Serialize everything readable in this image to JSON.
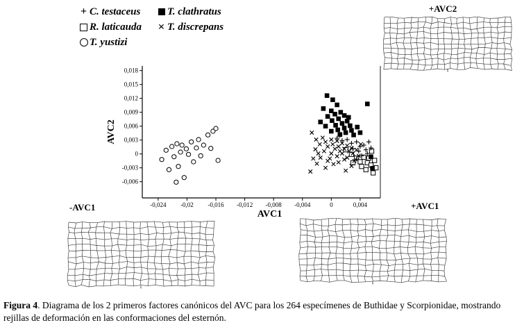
{
  "legend": {
    "items": [
      {
        "id": "c-testaceus",
        "marker": "plus",
        "label": "C. testaceus"
      },
      {
        "id": "r-laticauda",
        "marker": "square-open",
        "label": "R. laticauda"
      },
      {
        "id": "t-yustizi",
        "marker": "circle-open",
        "label": "T. yustizi"
      },
      {
        "id": "t-clathratus",
        "marker": "square-filled",
        "label": "T. clathratus"
      },
      {
        "id": "t-discrepans",
        "marker": "x",
        "label": "T. discrepans"
      }
    ]
  },
  "grid_panels": {
    "top_right": {
      "label": "+AVC2"
    },
    "bottom_left": {
      "label": "-AVC1"
    },
    "bottom_right": {
      "label": "+AVC1"
    }
  },
  "chart_data": {
    "type": "scatter",
    "title": "",
    "xlabel": "AVC1",
    "ylabel": "AVC2",
    "xlim": [
      -0.0262,
      0.0068
    ],
    "ylim": [
      -0.0095,
      0.019
    ],
    "grid": false,
    "legend_position": "top-left-outside",
    "xticks": [
      {
        "v": -0.024,
        "label": "-0,024"
      },
      {
        "v": -0.02,
        "label": "-0,02"
      },
      {
        "v": -0.016,
        "label": "-0,016"
      },
      {
        "v": -0.012,
        "label": "-0,012"
      },
      {
        "v": -0.008,
        "label": "-0,008"
      },
      {
        "v": -0.004,
        "label": "-0,004"
      },
      {
        "v": 0,
        "label": "0"
      },
      {
        "v": 0.004,
        "label": "0,004"
      }
    ],
    "yticks": [
      {
        "v": 0.018,
        "label": "0,018"
      },
      {
        "v": 0.015,
        "label": "0,015"
      },
      {
        "v": 0.012,
        "label": "0,012"
      },
      {
        "v": 0.009,
        "label": "0,009"
      },
      {
        "v": 0.006,
        "label": "0,006"
      },
      {
        "v": 0.003,
        "label": "0,003"
      },
      {
        "v": 0,
        "label": "0"
      },
      {
        "v": -0.003,
        "label": "-0,003"
      },
      {
        "v": -0.006,
        "label": "-0,006"
      }
    ],
    "marker_color": "#000000",
    "axis_color": "#000000",
    "series": [
      {
        "name": "C. testaceus",
        "marker": "plus",
        "points": [
          [
            0.0008,
            0.0034
          ],
          [
            0.0015,
            0.0029
          ],
          [
            0.0022,
            0.0031
          ],
          [
            0.0028,
            0.0023
          ],
          [
            0.0035,
            0.0026
          ],
          [
            0.004,
            0.0016
          ],
          [
            0.003,
            0.0011
          ],
          [
            0.0038,
            0.0006
          ],
          [
            0.0045,
            0.0019
          ],
          [
            0.0048,
            0.0009
          ],
          [
            0.0042,
            -0.0004
          ],
          [
            0.005,
            0.0001
          ],
          [
            0.0052,
            0.0026
          ],
          [
            0.0035,
            -0.0011
          ],
          [
            0.0055,
            0.0013
          ],
          [
            0.0012,
            0.004
          ]
        ]
      },
      {
        "name": "R. laticauda",
        "marker": "square-open",
        "points": [
          [
            0.002,
            0.0009
          ],
          [
            0.0028,
            -0.0001
          ],
          [
            0.0035,
            -0.0009
          ],
          [
            0.003,
            -0.0019
          ],
          [
            0.004,
            -0.0017
          ],
          [
            0.0045,
            -0.0007
          ],
          [
            0.0042,
            -0.0027
          ],
          [
            0.005,
            -0.0019
          ],
          [
            0.0048,
            -0.0034
          ],
          [
            0.0055,
            -0.0024
          ],
          [
            0.0058,
            -0.0041
          ],
          [
            0.0052,
            -0.0009
          ],
          [
            0.006,
            -0.0014
          ],
          [
            0.0056,
            0.0006
          ],
          [
            0.0062,
            -0.003
          ]
        ]
      },
      {
        "name": "T. yustizi",
        "marker": "circle-open",
        "points": [
          [
            -0.0235,
            -0.0012
          ],
          [
            -0.0229,
            0.0008
          ],
          [
            -0.0225,
            -0.0034
          ],
          [
            -0.0221,
            0.0016
          ],
          [
            -0.0218,
            -0.0006
          ],
          [
            -0.0214,
            0.0022
          ],
          [
            -0.0212,
            -0.0027
          ],
          [
            -0.0209,
            0.0004
          ],
          [
            -0.0207,
            0.0019
          ],
          [
            -0.0204,
            -0.0051
          ],
          [
            -0.0215,
            -0.0061
          ],
          [
            -0.0201,
            0.0011
          ],
          [
            -0.0198,
            -0.0001
          ],
          [
            -0.0194,
            0.0026
          ],
          [
            -0.0191,
            -0.0017
          ],
          [
            -0.0187,
            0.0013
          ],
          [
            -0.0184,
            0.0031
          ],
          [
            -0.0181,
            -0.0004
          ],
          [
            -0.0177,
            0.0019
          ],
          [
            -0.0171,
            0.0041
          ],
          [
            -0.0167,
            0.0012
          ],
          [
            -0.0164,
            0.0049
          ],
          [
            -0.016,
            0.0055
          ],
          [
            -0.0157,
            -0.0014
          ]
        ]
      },
      {
        "name": "T. clathratus",
        "marker": "square-filled",
        "points": [
          [
            -0.0006,
            0.0126
          ],
          [
            0.0002,
            0.0117
          ],
          [
            0.0008,
            0.0106
          ],
          [
            -0.0011,
            0.0098
          ],
          [
            0.0,
            0.0093
          ],
          [
            0.0013,
            0.009
          ],
          [
            0.0005,
            0.0086
          ],
          [
            -0.0005,
            0.0081
          ],
          [
            0.0018,
            0.0083
          ],
          [
            0.001,
            0.0076
          ],
          [
            0.0001,
            0.0072
          ],
          [
            0.0022,
            0.0071
          ],
          [
            0.0015,
            0.0066
          ],
          [
            0.0006,
            0.0062
          ],
          [
            -0.0008,
            0.006
          ],
          [
            0.0026,
            0.0061
          ],
          [
            0.0018,
            0.0056
          ],
          [
            0.0009,
            0.0052
          ],
          [
            0.0,
            0.0049
          ],
          [
            0.0028,
            0.0051
          ],
          [
            0.002,
            0.0046
          ],
          [
            0.0012,
            0.0042
          ],
          [
            0.0031,
            0.0041
          ],
          [
            0.005,
            0.0108
          ],
          [
            0.0036,
            0.0058
          ],
          [
            -0.0015,
            0.0069
          ],
          [
            0.004,
            0.0046
          ],
          [
            0.0024,
            0.0079
          ],
          [
            0.0055,
            -0.0006
          ],
          [
            0.0057,
            -0.0031
          ]
        ]
      },
      {
        "name": "T. discrepans",
        "marker": "x",
        "points": [
          [
            -0.0027,
            0.0046
          ],
          [
            -0.0021,
            0.0031
          ],
          [
            -0.0016,
            0.0021
          ],
          [
            -0.0022,
            0.001
          ],
          [
            -0.0018,
            0.0001
          ],
          [
            -0.0025,
            -0.001
          ],
          [
            -0.0012,
            0.0035
          ],
          [
            -0.0008,
            0.0026
          ],
          [
            -0.0005,
            0.0016
          ],
          [
            -0.001,
            0.0006
          ],
          [
            -0.0015,
            -0.0008
          ],
          [
            -0.002,
            -0.0021
          ],
          [
            -0.0005,
            -0.0015
          ],
          [
            -0.0008,
            -0.003
          ],
          [
            0.0,
            0.0031
          ],
          [
            0.0002,
            0.0021
          ],
          [
            0.0005,
            0.0011
          ],
          [
            0.0,
            0.0001
          ],
          [
            -0.0002,
            -0.001
          ],
          [
            0.0003,
            -0.0022
          ],
          [
            0.0008,
            0.0028
          ],
          [
            0.001,
            0.0016
          ],
          [
            0.0012,
            0.0006
          ],
          [
            0.0008,
            -0.0005
          ],
          [
            0.001,
            -0.0018
          ],
          [
            0.0015,
            0.0023
          ],
          [
            0.0018,
            0.0011
          ],
          [
            0.0015,
            0.0001
          ],
          [
            0.0018,
            -0.0012
          ],
          [
            0.0022,
            0.0018
          ],
          [
            0.0025,
            0.0006
          ],
          [
            0.0022,
            -0.0008
          ],
          [
            0.0028,
            0.0013
          ],
          [
            0.003,
            0.0001
          ],
          [
            0.0032,
            -0.0015
          ],
          [
            0.0035,
            0.0009
          ],
          [
            0.0038,
            -0.0004
          ],
          [
            0.0028,
            -0.0026
          ],
          [
            0.002,
            -0.0036
          ],
          [
            0.0041,
            0.0021
          ],
          [
            -0.0029,
            -0.0038
          ]
        ]
      }
    ]
  },
  "caption": {
    "label": "Figura 4",
    "text": ". Diagrama de los 2 primeros factores canónicos del AVC para los 264 especímenes de Buthidae y Scorpionidae, mostrando rejillas de deformación en las conformaciones del esternón."
  }
}
